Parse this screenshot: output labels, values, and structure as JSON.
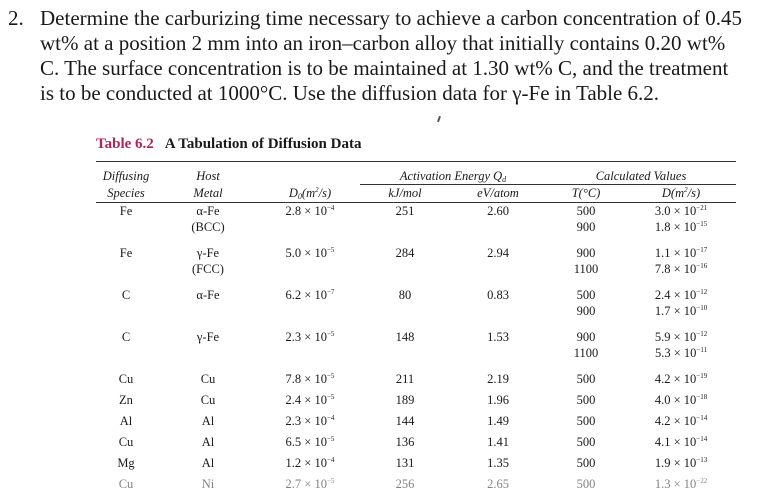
{
  "problem": {
    "number": "2.",
    "lines": [
      "Determine the carburizing time necessary to achieve a carbon concentration of 0.45",
      "wt% at a position 2 mm into an iron–carbon alloy that initially contains 0.20 wt%",
      "C. The surface concentration is to be maintained at 1.30 wt% C, and the treatment",
      "is to be conducted at 1000°C. Use the diffusion data for γ-Fe in Table 6.2."
    ]
  },
  "table": {
    "label": "Table 6.2",
    "title": "A Tabulation of Diffusion Data",
    "headers": {
      "diffusing_1": "Diffusing",
      "diffusing_2": "Species",
      "host_1": "Host",
      "host_2": "Metal",
      "d0": "D",
      "d0_sub": "0",
      "d0_units": "(m",
      "d0_units_sup": "2",
      "d0_units_end": "/s)",
      "activation": "Activation Energy Q",
      "activation_sub": "d",
      "kj": "kJ/mol",
      "ev": "eV/atom",
      "calculated": "Calculated Values",
      "t": "T(°C)",
      "d": "D(m",
      "d_sup": "2",
      "d_end": "/s)"
    },
    "rows": [
      {
        "species": "Fe",
        "host": "α-Fe",
        "host2": "(BCC)",
        "d0": "2.8 × 10",
        "d0e": "−4",
        "kj": "251",
        "ev": "2.60",
        "t1": "500",
        "d1": "3.0 × 10",
        "d1e": "−21",
        "t2": "900",
        "d2": "1.8 × 10",
        "d2e": "−15"
      },
      {
        "species": "Fe",
        "host": "γ-Fe",
        "host2": "(FCC)",
        "d0": "5.0 × 10",
        "d0e": "−5",
        "kj": "284",
        "ev": "2.94",
        "t1": "900",
        "d1": "1.1 × 10",
        "d1e": "−17",
        "t2": "1100",
        "d2": "7.8 × 10",
        "d2e": "−16"
      },
      {
        "species": "C",
        "host": "α-Fe",
        "host2": "",
        "d0": "6.2 × 10",
        "d0e": "−7",
        "kj": "80",
        "ev": "0.83",
        "t1": "500",
        "d1": "2.4 × 10",
        "d1e": "−12",
        "t2": "900",
        "d2": "1.7 × 10",
        "d2e": "−10"
      },
      {
        "species": "C",
        "host": "γ-Fe",
        "host2": "",
        "d0": "2.3 × 10",
        "d0e": "−5",
        "kj": "148",
        "ev": "1.53",
        "t1": "900",
        "d1": "5.9 × 10",
        "d1e": "−12",
        "t2": "1100",
        "d2": "5.3 × 10",
        "d2e": "−11"
      },
      {
        "species": "Cu",
        "host": "Cu",
        "d0": "7.8 × 10",
        "d0e": "−5",
        "kj": "211",
        "ev": "2.19",
        "t1": "500",
        "d1": "4.2 × 10",
        "d1e": "−19"
      },
      {
        "species": "Zn",
        "host": "Cu",
        "d0": "2.4 × 10",
        "d0e": "−5",
        "kj": "189",
        "ev": "1.96",
        "t1": "500",
        "d1": "4.0 × 10",
        "d1e": "−18"
      },
      {
        "species": "Al",
        "host": "Al",
        "d0": "2.3 × 10",
        "d0e": "−4",
        "kj": "144",
        "ev": "1.49",
        "t1": "500",
        "d1": "4.2 × 10",
        "d1e": "−14"
      },
      {
        "species": "Cu",
        "host": "Al",
        "d0": "6.5 × 10",
        "d0e": "−5",
        "kj": "136",
        "ev": "1.41",
        "t1": "500",
        "d1": "4.1 × 10",
        "d1e": "−14"
      },
      {
        "species": "Mg",
        "host": "Al",
        "d0": "1.2 × 10",
        "d0e": "−4",
        "kj": "131",
        "ev": "1.35",
        "t1": "500",
        "d1": "1.9 × 10",
        "d1e": "−13"
      },
      {
        "species": "Cu",
        "host": "Ni",
        "d0": "2.7 × 10",
        "d0e": "−5",
        "kj": "256",
        "ev": "2.65",
        "t1": "500",
        "d1": "1.3 × 10",
        "d1e": "−22"
      }
    ]
  }
}
